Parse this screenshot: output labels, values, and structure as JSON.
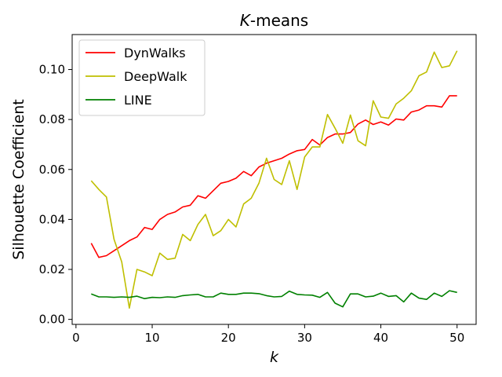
{
  "chart_data": {
    "type": "line",
    "title_italic": "K",
    "title_rest": "-means",
    "xlabel": "k",
    "ylabel": "Silhouette Coefficient",
    "xlim": [
      -0.5,
      52.5
    ],
    "ylim": [
      -0.002,
      0.114
    ],
    "xticks": [
      0,
      10,
      20,
      30,
      40,
      50
    ],
    "xtick_labels": [
      "0",
      "10",
      "20",
      "30",
      "40",
      "50"
    ],
    "yticks": [
      0.0,
      0.02,
      0.04,
      0.06,
      0.08,
      0.1
    ],
    "ytick_labels": [
      "0.00",
      "0.02",
      "0.04",
      "0.06",
      "0.08",
      "0.10"
    ],
    "grid": false,
    "legend_position": "top-left",
    "x": [
      2,
      3,
      4,
      5,
      6,
      7,
      8,
      9,
      10,
      11,
      12,
      13,
      14,
      15,
      16,
      17,
      18,
      19,
      20,
      21,
      22,
      23,
      24,
      25,
      26,
      27,
      28,
      29,
      30,
      31,
      32,
      33,
      34,
      35,
      36,
      37,
      38,
      39,
      40,
      41,
      42,
      43,
      44,
      45,
      46,
      47,
      48,
      49,
      50
    ],
    "series": [
      {
        "name": "DynWalks",
        "color": "#ff0000",
        "values": [
          0.0305,
          0.0248,
          0.0255,
          0.0275,
          0.0295,
          0.0315,
          0.033,
          0.0368,
          0.036,
          0.04,
          0.042,
          0.043,
          0.045,
          0.0457,
          0.0495,
          0.0485,
          0.0515,
          0.0545,
          0.0552,
          0.0565,
          0.0592,
          0.0575,
          0.061,
          0.0625,
          0.0635,
          0.0645,
          0.0662,
          0.0675,
          0.068,
          0.072,
          0.0698,
          0.0728,
          0.0742,
          0.0742,
          0.0748,
          0.0782,
          0.0798,
          0.078,
          0.079,
          0.0778,
          0.0802,
          0.0798,
          0.083,
          0.0838,
          0.0855,
          0.0855,
          0.085,
          0.0895,
          0.0895
        ]
      },
      {
        "name": "DeepWalk",
        "color": "#bfbf00",
        "values": [
          0.0555,
          0.052,
          0.049,
          0.032,
          0.023,
          0.0045,
          0.02,
          0.019,
          0.0175,
          0.0265,
          0.024,
          0.0245,
          0.034,
          0.0315,
          0.038,
          0.042,
          0.0335,
          0.0355,
          0.04,
          0.037,
          0.0462,
          0.0485,
          0.0545,
          0.0645,
          0.056,
          0.054,
          0.0635,
          0.052,
          0.065,
          0.069,
          0.069,
          0.082,
          0.0765,
          0.0705,
          0.0818,
          0.0715,
          0.0695,
          0.0875,
          0.081,
          0.0805,
          0.0862,
          0.0885,
          0.0915,
          0.0975,
          0.099,
          0.107,
          0.1008,
          0.1015,
          0.1075
        ]
      },
      {
        "name": "LINE",
        "color": "#008000",
        "values": [
          0.0102,
          0.009,
          0.009,
          0.0088,
          0.009,
          0.0088,
          0.0093,
          0.0083,
          0.0088,
          0.0087,
          0.009,
          0.0088,
          0.0095,
          0.0098,
          0.01,
          0.009,
          0.009,
          0.0105,
          0.01,
          0.01,
          0.0105,
          0.0105,
          0.0103,
          0.0095,
          0.009,
          0.0092,
          0.0113,
          0.01,
          0.0098,
          0.0097,
          0.0088,
          0.0108,
          0.0065,
          0.005,
          0.0102,
          0.0102,
          0.009,
          0.0093,
          0.0105,
          0.0092,
          0.0095,
          0.007,
          0.0105,
          0.0085,
          0.008,
          0.0105,
          0.0092,
          0.0115,
          0.0108
        ]
      }
    ]
  }
}
